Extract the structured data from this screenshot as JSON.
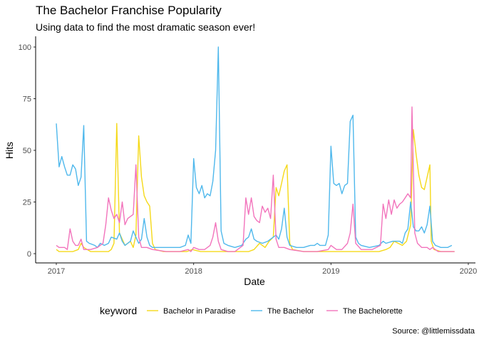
{
  "chart_data": {
    "type": "line",
    "title": "The Bachelor Franchise Popularity",
    "subtitle": "Using data to find the most dramatic season ever!",
    "caption": "Source: @littlemissdata",
    "xlabel": "Date",
    "ylabel": "Hits",
    "legend_title": "keyword",
    "legend_position": "bottom",
    "grid": false,
    "xlim": [
      2017.0,
      2020.0
    ],
    "ylim": [
      0,
      100
    ],
    "x_ticks": [
      2017,
      2018,
      2019,
      2020
    ],
    "x_tick_labels": [
      "2017",
      "2018",
      "2019",
      "2020"
    ],
    "y_ticks": [
      0,
      25,
      50,
      75,
      100
    ],
    "y_tick_labels": [
      "0",
      "25",
      "50",
      "75",
      "100"
    ],
    "series": [
      {
        "name": "Bachelor in Paradise",
        "color": "#F5D919",
        "points": [
          [
            2017.0,
            2
          ],
          [
            2017.02,
            1
          ],
          [
            2017.08,
            1
          ],
          [
            2017.12,
            1
          ],
          [
            2017.16,
            2
          ],
          [
            2017.18,
            5
          ],
          [
            2017.2,
            3
          ],
          [
            2017.25,
            1
          ],
          [
            2017.35,
            1
          ],
          [
            2017.38,
            1
          ],
          [
            2017.4,
            2
          ],
          [
            2017.42,
            5
          ],
          [
            2017.44,
            63
          ],
          [
            2017.46,
            10
          ],
          [
            2017.5,
            4
          ],
          [
            2017.54,
            6
          ],
          [
            2017.56,
            3
          ],
          [
            2017.58,
            9
          ],
          [
            2017.6,
            57
          ],
          [
            2017.62,
            37
          ],
          [
            2017.64,
            28
          ],
          [
            2017.66,
            25
          ],
          [
            2017.68,
            23
          ],
          [
            2017.7,
            5
          ],
          [
            2017.72,
            2
          ],
          [
            2017.78,
            1
          ],
          [
            2017.85,
            1
          ],
          [
            2017.95,
            1
          ],
          [
            2017.99,
            2
          ],
          [
            2018.05,
            1
          ],
          [
            2018.1,
            1
          ],
          [
            2018.15,
            1
          ],
          [
            2018.2,
            1
          ],
          [
            2018.25,
            1
          ],
          [
            2018.3,
            1
          ],
          [
            2018.36,
            1
          ],
          [
            2018.4,
            1
          ],
          [
            2018.44,
            2
          ],
          [
            2018.48,
            5
          ],
          [
            2018.52,
            3
          ],
          [
            2018.55,
            6
          ],
          [
            2018.58,
            8
          ],
          [
            2018.6,
            32
          ],
          [
            2018.62,
            28
          ],
          [
            2018.64,
            34
          ],
          [
            2018.66,
            40
          ],
          [
            2018.68,
            43
          ],
          [
            2018.7,
            5
          ],
          [
            2018.72,
            2
          ],
          [
            2018.8,
            1
          ],
          [
            2018.9,
            1
          ],
          [
            2018.98,
            1
          ],
          [
            2019.05,
            1
          ],
          [
            2019.15,
            1
          ],
          [
            2019.25,
            1
          ],
          [
            2019.35,
            1
          ],
          [
            2019.4,
            2
          ],
          [
            2019.43,
            3
          ],
          [
            2019.46,
            6
          ],
          [
            2019.49,
            5
          ],
          [
            2019.52,
            4
          ],
          [
            2019.55,
            6
          ],
          [
            2019.58,
            14
          ],
          [
            2019.6,
            60
          ],
          [
            2019.62,
            48
          ],
          [
            2019.64,
            38
          ],
          [
            2019.66,
            32
          ],
          [
            2019.68,
            31
          ],
          [
            2019.7,
            37
          ],
          [
            2019.72,
            43
          ],
          [
            2019.73,
            6
          ],
          [
            2019.75,
            2
          ],
          [
            2019.8,
            1
          ],
          [
            2019.9,
            1
          ]
        ]
      },
      {
        "name": "The Bachelor",
        "color": "#4FB8EC",
        "points": [
          [
            2017.0,
            63
          ],
          [
            2017.02,
            42
          ],
          [
            2017.04,
            47
          ],
          [
            2017.06,
            42
          ],
          [
            2017.08,
            38
          ],
          [
            2017.1,
            38
          ],
          [
            2017.12,
            43
          ],
          [
            2017.14,
            41
          ],
          [
            2017.16,
            33
          ],
          [
            2017.18,
            37
          ],
          [
            2017.2,
            62
          ],
          [
            2017.22,
            6
          ],
          [
            2017.24,
            5
          ],
          [
            2017.28,
            4
          ],
          [
            2017.3,
            3
          ],
          [
            2017.32,
            5
          ],
          [
            2017.35,
            4
          ],
          [
            2017.38,
            5
          ],
          [
            2017.4,
            8
          ],
          [
            2017.44,
            7
          ],
          [
            2017.46,
            10
          ],
          [
            2017.48,
            6
          ],
          [
            2017.5,
            4
          ],
          [
            2017.52,
            5
          ],
          [
            2017.54,
            6
          ],
          [
            2017.56,
            11
          ],
          [
            2017.58,
            8
          ],
          [
            2017.6,
            5
          ],
          [
            2017.62,
            7
          ],
          [
            2017.64,
            17
          ],
          [
            2017.66,
            8
          ],
          [
            2017.68,
            4
          ],
          [
            2017.7,
            3
          ],
          [
            2017.8,
            3
          ],
          [
            2017.9,
            3
          ],
          [
            2017.94,
            4
          ],
          [
            2017.96,
            9
          ],
          [
            2017.98,
            5
          ],
          [
            2018.0,
            46
          ],
          [
            2018.02,
            32
          ],
          [
            2018.04,
            29
          ],
          [
            2018.06,
            33
          ],
          [
            2018.08,
            27
          ],
          [
            2018.1,
            29
          ],
          [
            2018.12,
            28
          ],
          [
            2018.14,
            35
          ],
          [
            2018.16,
            50
          ],
          [
            2018.18,
            100
          ],
          [
            2018.2,
            11
          ],
          [
            2018.22,
            5
          ],
          [
            2018.25,
            4
          ],
          [
            2018.3,
            3
          ],
          [
            2018.35,
            4
          ],
          [
            2018.38,
            7
          ],
          [
            2018.4,
            8
          ],
          [
            2018.42,
            12
          ],
          [
            2018.44,
            7
          ],
          [
            2018.46,
            6
          ],
          [
            2018.5,
            5
          ],
          [
            2018.54,
            6
          ],
          [
            2018.58,
            8
          ],
          [
            2018.6,
            9
          ],
          [
            2018.62,
            7
          ],
          [
            2018.64,
            12
          ],
          [
            2018.66,
            22
          ],
          [
            2018.68,
            8
          ],
          [
            2018.7,
            4
          ],
          [
            2018.75,
            3
          ],
          [
            2018.8,
            3
          ],
          [
            2018.85,
            4
          ],
          [
            2018.88,
            4
          ],
          [
            2018.9,
            5
          ],
          [
            2018.92,
            4
          ],
          [
            2018.94,
            4
          ],
          [
            2018.96,
            4
          ],
          [
            2018.98,
            9
          ],
          [
            2019.0,
            52
          ],
          [
            2019.02,
            34
          ],
          [
            2019.04,
            33
          ],
          [
            2019.06,
            34
          ],
          [
            2019.08,
            29
          ],
          [
            2019.1,
            33
          ],
          [
            2019.12,
            34
          ],
          [
            2019.14,
            64
          ],
          [
            2019.16,
            67
          ],
          [
            2019.18,
            8
          ],
          [
            2019.2,
            5
          ],
          [
            2019.22,
            4
          ],
          [
            2019.28,
            3
          ],
          [
            2019.35,
            4
          ],
          [
            2019.38,
            6
          ],
          [
            2019.4,
            5
          ],
          [
            2019.45,
            6
          ],
          [
            2019.5,
            6
          ],
          [
            2019.52,
            5
          ],
          [
            2019.54,
            10
          ],
          [
            2019.56,
            12
          ],
          [
            2019.58,
            25
          ],
          [
            2019.6,
            13
          ],
          [
            2019.62,
            11
          ],
          [
            2019.64,
            11
          ],
          [
            2019.66,
            13
          ],
          [
            2019.68,
            10
          ],
          [
            2019.7,
            14
          ],
          [
            2019.72,
            23
          ],
          [
            2019.74,
            6
          ],
          [
            2019.76,
            4
          ],
          [
            2019.8,
            3
          ],
          [
            2019.85,
            3
          ],
          [
            2019.88,
            4
          ]
        ]
      },
      {
        "name": "The Bachelorette",
        "color": "#F274BC",
        "points": [
          [
            2017.0,
            4
          ],
          [
            2017.02,
            3
          ],
          [
            2017.04,
            3
          ],
          [
            2017.06,
            3
          ],
          [
            2017.08,
            2
          ],
          [
            2017.1,
            12
          ],
          [
            2017.12,
            6
          ],
          [
            2017.14,
            4
          ],
          [
            2017.16,
            4
          ],
          [
            2017.18,
            7
          ],
          [
            2017.2,
            2
          ],
          [
            2017.25,
            2
          ],
          [
            2017.3,
            3
          ],
          [
            2017.34,
            5
          ],
          [
            2017.36,
            14
          ],
          [
            2017.38,
            27
          ],
          [
            2017.4,
            21
          ],
          [
            2017.42,
            17
          ],
          [
            2017.44,
            19
          ],
          [
            2017.46,
            15
          ],
          [
            2017.48,
            25
          ],
          [
            2017.5,
            14
          ],
          [
            2017.52,
            17
          ],
          [
            2017.54,
            18
          ],
          [
            2017.56,
            19
          ],
          [
            2017.58,
            43
          ],
          [
            2017.6,
            8
          ],
          [
            2017.62,
            3
          ],
          [
            2017.66,
            3
          ],
          [
            2017.7,
            2
          ],
          [
            2017.8,
            1
          ],
          [
            2017.9,
            1
          ],
          [
            2017.96,
            2
          ],
          [
            2017.98,
            1
          ],
          [
            2018.0,
            3
          ],
          [
            2018.04,
            2
          ],
          [
            2018.08,
            2
          ],
          [
            2018.12,
            4
          ],
          [
            2018.14,
            8
          ],
          [
            2018.16,
            15
          ],
          [
            2018.18,
            6
          ],
          [
            2018.2,
            2
          ],
          [
            2018.25,
            1
          ],
          [
            2018.3,
            1
          ],
          [
            2018.36,
            4
          ],
          [
            2018.38,
            27
          ],
          [
            2018.4,
            19
          ],
          [
            2018.42,
            27
          ],
          [
            2018.44,
            18
          ],
          [
            2018.46,
            16
          ],
          [
            2018.48,
            15
          ],
          [
            2018.5,
            23
          ],
          [
            2018.52,
            20
          ],
          [
            2018.54,
            22
          ],
          [
            2018.56,
            17
          ],
          [
            2018.58,
            38
          ],
          [
            2018.6,
            7
          ],
          [
            2018.62,
            3
          ],
          [
            2018.66,
            3
          ],
          [
            2018.7,
            2
          ],
          [
            2018.8,
            1
          ],
          [
            2018.9,
            1
          ],
          [
            2018.98,
            2
          ],
          [
            2019.0,
            4
          ],
          [
            2019.04,
            2
          ],
          [
            2019.08,
            2
          ],
          [
            2019.12,
            5
          ],
          [
            2019.14,
            10
          ],
          [
            2019.16,
            24
          ],
          [
            2019.18,
            5
          ],
          [
            2019.22,
            2
          ],
          [
            2019.3,
            2
          ],
          [
            2019.36,
            4
          ],
          [
            2019.38,
            24
          ],
          [
            2019.4,
            17
          ],
          [
            2019.42,
            26
          ],
          [
            2019.44,
            19
          ],
          [
            2019.46,
            26
          ],
          [
            2019.48,
            22
          ],
          [
            2019.5,
            24
          ],
          [
            2019.52,
            25
          ],
          [
            2019.54,
            27
          ],
          [
            2019.56,
            29
          ],
          [
            2019.58,
            27
          ],
          [
            2019.59,
            71
          ],
          [
            2019.61,
            10
          ],
          [
            2019.63,
            5
          ],
          [
            2019.66,
            3
          ],
          [
            2019.7,
            3
          ],
          [
            2019.72,
            2
          ],
          [
            2019.74,
            3
          ],
          [
            2019.78,
            1
          ],
          [
            2019.9,
            1
          ]
        ]
      }
    ]
  }
}
